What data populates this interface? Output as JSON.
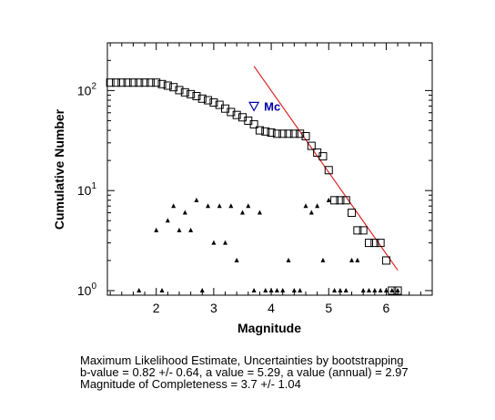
{
  "chart_data": {
    "type": "scatter",
    "xlabel": "Magnitude",
    "ylabel": "Cumulative Number",
    "xlim": [
      1.15,
      6.8
    ],
    "ylim": [
      0.9,
      300
    ],
    "y_scale": "log",
    "x_ticks": [
      2,
      3,
      4,
      5,
      6
    ],
    "x_tick_labels": [
      "2",
      "3",
      "4",
      "5",
      "6"
    ],
    "y_ticks": [
      1,
      10,
      100
    ],
    "y_tick_base": "10",
    "y_tick_exponents": [
      "0",
      "1",
      "2"
    ],
    "grid": false,
    "series": [
      {
        "marker": "square",
        "x": [
          1.2,
          1.3,
          1.4,
          1.5,
          1.6,
          1.7,
          1.8,
          1.9,
          2.0,
          2.1,
          2.2,
          2.3,
          2.4,
          2.5,
          2.6,
          2.7,
          2.8,
          2.9,
          3.0,
          3.1,
          3.2,
          3.3,
          3.4,
          3.5,
          3.6,
          3.7,
          3.8,
          3.9,
          4.0,
          4.1,
          4.2,
          4.3,
          4.4,
          4.5,
          4.6,
          4.7,
          4.8,
          4.9,
          5.0,
          5.1,
          5.2,
          5.3,
          5.4,
          5.5,
          5.6,
          5.7,
          5.8,
          5.9,
          6.0,
          6.1,
          6.2
        ],
        "y": [
          120,
          120,
          120,
          120,
          120,
          120,
          120,
          120,
          120,
          116,
          112,
          108,
          101,
          96,
          92,
          88,
          83,
          80,
          76,
          72,
          66,
          61,
          57,
          54,
          50,
          46,
          40,
          39,
          38,
          37,
          37,
          37,
          37,
          37,
          35,
          28,
          24,
          22,
          16,
          8,
          8,
          8,
          6,
          4,
          4,
          3,
          3,
          3,
          2,
          1,
          1
        ]
      },
      {
        "marker": "triangle",
        "x": [
          1.7,
          2.0,
          2.1,
          2.2,
          2.3,
          2.4,
          2.5,
          2.6,
          2.7,
          2.8,
          2.9,
          3.0,
          3.1,
          3.2,
          3.3,
          3.4,
          3.5,
          3.6,
          3.7,
          3.8,
          3.9,
          4.0,
          4.1,
          4.2,
          4.3,
          4.4,
          4.5,
          4.6,
          4.7,
          4.8,
          4.9,
          5.0,
          5.1,
          5.2,
          5.3,
          5.4,
          5.5,
          5.6,
          5.7,
          5.8,
          5.9,
          6.0,
          6.1,
          6.2
        ],
        "y": [
          1,
          4,
          1,
          5,
          7,
          4,
          6,
          4,
          8,
          1,
          7,
          3,
          7,
          3,
          7,
          2,
          6,
          7,
          1,
          6,
          1,
          1,
          1,
          1,
          2,
          1,
          1,
          7,
          6,
          7,
          2,
          8,
          1,
          1,
          1,
          2,
          2,
          1,
          1,
          1,
          1,
          1,
          1,
          1
        ]
      }
    ],
    "fit_line": {
      "color": "#dd2222",
      "x": [
        3.7,
        6.2
      ],
      "y": [
        175,
        1.6
      ]
    },
    "mc_marker": {
      "label": "Mc",
      "x": 3.7,
      "y": 70,
      "color": "#0000aa"
    }
  },
  "footer": {
    "line1": "Maximum Likelihood Estimate, Uncertainties by bootstrapping",
    "line2": "b-value = 0.82 +/- 0.64,  a value = 5.29,  a value (annual) = 2.97",
    "line3": "Magnitude of Completeness = 3.7 +/- 1.04"
  }
}
